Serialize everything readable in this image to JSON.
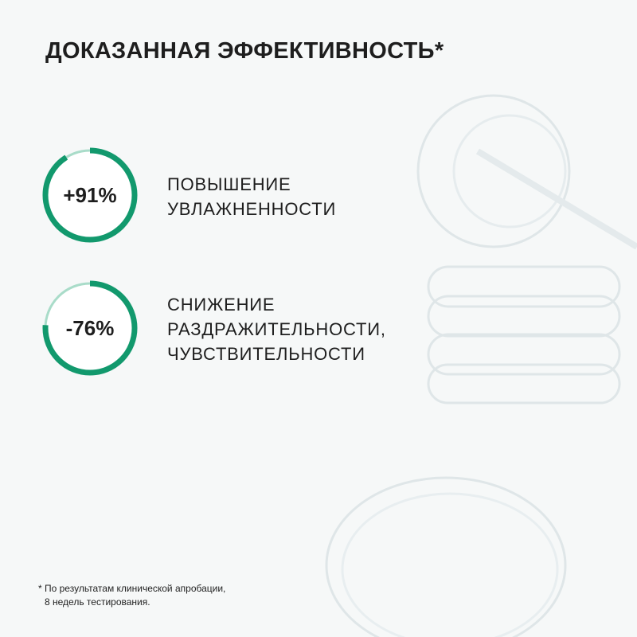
{
  "title": "ДОКАЗАННАЯ ЭФФЕКТИВНОСТЬ*",
  "colors": {
    "accent": "#12996d",
    "accent_light": "#a9dcc9",
    "background": "#f6f8f8"
  },
  "stats": [
    {
      "value": "+91%",
      "percent": 91,
      "lines": [
        "ПОВЫШЕНИЕ",
        "УВЛАЖНЕННОСТИ"
      ]
    },
    {
      "value": "-76%",
      "percent": 76,
      "lines": [
        "СНИЖЕНИЕ",
        "РАЗДРАЖИТЕЛЬНОСТИ,",
        "ЧУВСТВИТЕЛЬНОСТИ"
      ]
    }
  ],
  "footnote": [
    "* По результатам клинической апробации,",
    "8 недель тестирования."
  ]
}
